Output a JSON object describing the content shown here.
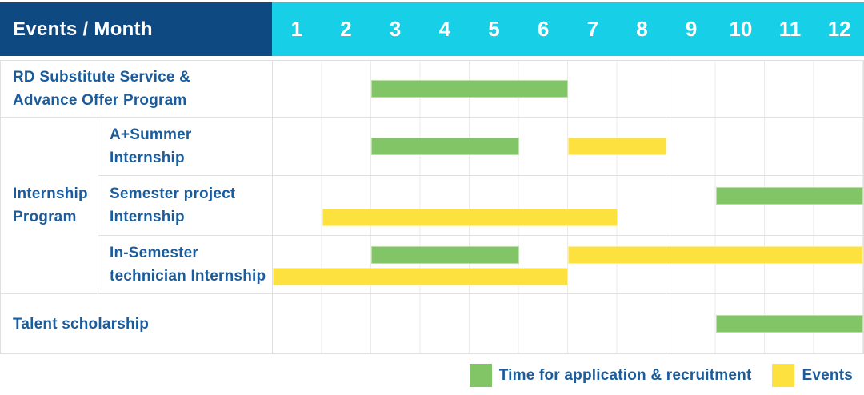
{
  "header": {
    "title": "Events / Month"
  },
  "display_labels": {
    "row1": "RD Substitute Service &\nAdvance Offer Program",
    "group": "Internship\nProgram",
    "row2": "A+Summer\nInternship",
    "row3": "Semester project\nInternship",
    "row4": "In-Semester\ntechnician Internship",
    "row5": "Talent scholarship"
  },
  "colors": {
    "header_bg": "#0e4a81",
    "months_bg": "#17d0e8",
    "application": "#82c566",
    "events": "#fde23f",
    "label_text": "#1b5c9c",
    "grid_line": "#ebebeb"
  },
  "chart_data": {
    "type": "bar",
    "subtype": "gantt-schedule",
    "title": "Events / Month",
    "x_axis": {
      "label": "Month",
      "range": [
        1,
        12
      ],
      "ticks": [
        1,
        2,
        3,
        4,
        5,
        6,
        7,
        8,
        9,
        10,
        11,
        12
      ]
    },
    "legend_position": "bottom-right",
    "legend": [
      {
        "series": "application",
        "label": "Time for application & recruitment",
        "color": "#82c566"
      },
      {
        "series": "events",
        "label": "Events",
        "color": "#fde23f"
      }
    ],
    "rows": [
      {
        "group": "",
        "label": "RD Substitute Service & Advance Offer Program",
        "bars": [
          {
            "series": "application",
            "start_month": 3,
            "end_month": 6,
            "lane": "middle"
          }
        ]
      },
      {
        "group": "Internship Program",
        "label": "A+Summer Internship",
        "bars": [
          {
            "series": "application",
            "start_month": 3,
            "end_month": 5,
            "lane": "middle"
          },
          {
            "series": "events",
            "start_month": 7,
            "end_month": 8,
            "lane": "middle"
          }
        ]
      },
      {
        "group": "Internship Program",
        "label": "Semester project Internship",
        "bars": [
          {
            "series": "application",
            "start_month": 10,
            "end_month": 12,
            "lane": "upper"
          },
          {
            "series": "events",
            "start_month": 2,
            "end_month": 7,
            "lane": "lower"
          }
        ]
      },
      {
        "group": "Internship Program",
        "label": "In-Semester technician Internship",
        "bars": [
          {
            "series": "application",
            "start_month": 3,
            "end_month": 5,
            "lane": "upper"
          },
          {
            "series": "events",
            "start_month": 7,
            "end_month": 12,
            "lane": "upper"
          },
          {
            "series": "events",
            "start_month": 1,
            "end_month": 6,
            "lane": "lower"
          }
        ]
      },
      {
        "group": "",
        "label": "Talent scholarship",
        "bars": [
          {
            "series": "application",
            "start_month": 10,
            "end_month": 12,
            "lane": "middle"
          }
        ]
      }
    ]
  }
}
